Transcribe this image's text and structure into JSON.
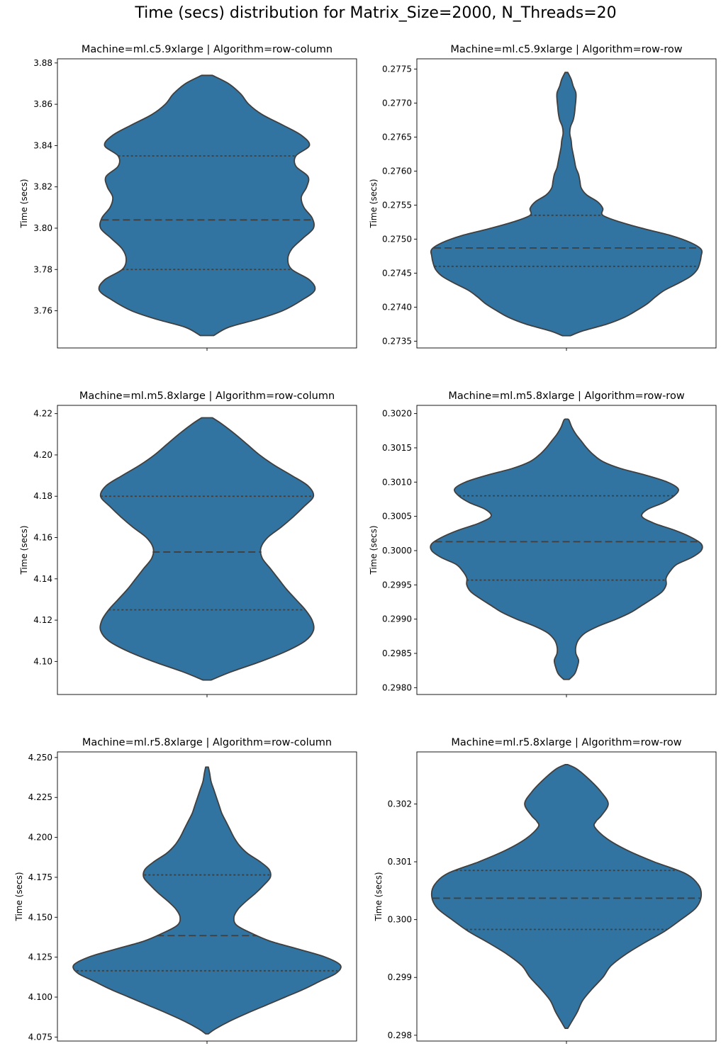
{
  "figure": {
    "title": "Time (secs) distribution for Matrix_Size=2000, N_Threads=20"
  },
  "colors": {
    "violin_fill": "#3274a1",
    "violin_edge": "#3f3f3f",
    "quartile_line": "#3f3f3f",
    "axes_edge": "#000000"
  },
  "chart_data": [
    {
      "type": "violin",
      "title": "Machine=ml.c5.9xlarge | Algorithm=row-column",
      "ylabel": "Time (secs)",
      "ylim": [
        3.742,
        3.882
      ],
      "ticks": [
        3.76,
        3.78,
        3.8,
        3.82,
        3.84,
        3.86,
        3.88
      ],
      "tick_labels": [
        "3.76",
        "3.78",
        "3.80",
        "3.82",
        "3.84",
        "3.86",
        "3.88"
      ],
      "quartiles": {
        "q1": 3.78,
        "median": 3.804,
        "q3": 3.835
      },
      "density": [
        [
          3.748,
          0.05
        ],
        [
          3.752,
          0.16
        ],
        [
          3.756,
          0.38
        ],
        [
          3.76,
          0.56
        ],
        [
          3.765,
          0.7
        ],
        [
          3.77,
          0.8
        ],
        [
          3.775,
          0.76
        ],
        [
          3.78,
          0.63
        ],
        [
          3.785,
          0.6
        ],
        [
          3.79,
          0.63
        ],
        [
          3.795,
          0.71
        ],
        [
          3.8,
          0.79
        ],
        [
          3.805,
          0.78
        ],
        [
          3.81,
          0.72
        ],
        [
          3.815,
          0.7
        ],
        [
          3.82,
          0.74
        ],
        [
          3.825,
          0.75
        ],
        [
          3.83,
          0.66
        ],
        [
          3.835,
          0.66
        ],
        [
          3.84,
          0.76
        ],
        [
          3.845,
          0.7
        ],
        [
          3.85,
          0.56
        ],
        [
          3.855,
          0.41
        ],
        [
          3.86,
          0.31
        ],
        [
          3.865,
          0.25
        ],
        [
          3.87,
          0.16
        ],
        [
          3.874,
          0.04
        ]
      ]
    },
    {
      "type": "violin",
      "title": "Machine=ml.c5.9xlarge | Algorithm=row-row",
      "ylabel": "Time (secs)",
      "ylim": [
        0.2734,
        0.27765
      ],
      "ticks": [
        0.2735,
        0.274,
        0.2745,
        0.275,
        0.2755,
        0.276,
        0.2765,
        0.277,
        0.2775
      ],
      "tick_labels": [
        "0.2735",
        "0.2740",
        "0.2745",
        "0.2750",
        "0.2755",
        "0.2760",
        "0.2765",
        "0.2770",
        "0.2775"
      ],
      "quartiles": {
        "q1": 0.2746,
        "median": 0.27487,
        "q3": 0.27535
      },
      "density": [
        [
          0.27358,
          0.03
        ],
        [
          0.27365,
          0.12
        ],
        [
          0.27375,
          0.3
        ],
        [
          0.27385,
          0.43
        ],
        [
          0.27395,
          0.52
        ],
        [
          0.27405,
          0.6
        ],
        [
          0.27415,
          0.66
        ],
        [
          0.27425,
          0.73
        ],
        [
          0.27435,
          0.83
        ],
        [
          0.27445,
          0.92
        ],
        [
          0.27455,
          0.97
        ],
        [
          0.27465,
          0.99
        ],
        [
          0.27475,
          1.0
        ],
        [
          0.27485,
          1.0
        ],
        [
          0.27495,
          0.92
        ],
        [
          0.27505,
          0.78
        ],
        [
          0.27515,
          0.58
        ],
        [
          0.27525,
          0.4
        ],
        [
          0.27535,
          0.27
        ],
        [
          0.27545,
          0.27
        ],
        [
          0.27555,
          0.23
        ],
        [
          0.27565,
          0.15
        ],
        [
          0.27575,
          0.11
        ],
        [
          0.27585,
          0.1
        ],
        [
          0.27595,
          0.09
        ],
        [
          0.27605,
          0.07
        ],
        [
          0.27615,
          0.06
        ],
        [
          0.27625,
          0.05
        ],
        [
          0.27635,
          0.04
        ],
        [
          0.27645,
          0.035
        ],
        [
          0.27655,
          0.025
        ],
        [
          0.27665,
          0.03
        ],
        [
          0.27675,
          0.05
        ],
        [
          0.27685,
          0.06
        ],
        [
          0.27695,
          0.065
        ],
        [
          0.27705,
          0.07
        ],
        [
          0.27715,
          0.07
        ],
        [
          0.27725,
          0.05
        ],
        [
          0.27735,
          0.035
        ],
        [
          0.27745,
          0.01
        ]
      ]
    },
    {
      "type": "violin",
      "title": "Machine=ml.m5.8xlarge | Algorithm=row-column",
      "ylabel": "Time (secs)",
      "ylim": [
        4.084,
        4.224
      ],
      "ticks": [
        4.1,
        4.12,
        4.14,
        4.16,
        4.18,
        4.2,
        4.22
      ],
      "tick_labels": [
        "4.10",
        "4.12",
        "4.14",
        "4.16",
        "4.18",
        "4.20",
        "4.22"
      ],
      "quartiles": {
        "q1": 4.125,
        "median": 4.153,
        "q3": 4.18
      },
      "density": [
        [
          4.091,
          0.03
        ],
        [
          4.095,
          0.18
        ],
        [
          4.1,
          0.4
        ],
        [
          4.105,
          0.59
        ],
        [
          4.11,
          0.73
        ],
        [
          4.115,
          0.79
        ],
        [
          4.12,
          0.78
        ],
        [
          4.125,
          0.73
        ],
        [
          4.13,
          0.66
        ],
        [
          4.135,
          0.59
        ],
        [
          4.14,
          0.53
        ],
        [
          4.145,
          0.47
        ],
        [
          4.15,
          0.41
        ],
        [
          4.155,
          0.4
        ],
        [
          4.16,
          0.45
        ],
        [
          4.165,
          0.55
        ],
        [
          4.17,
          0.64
        ],
        [
          4.175,
          0.72
        ],
        [
          4.18,
          0.79
        ],
        [
          4.185,
          0.75
        ],
        [
          4.19,
          0.63
        ],
        [
          4.195,
          0.5
        ],
        [
          4.2,
          0.39
        ],
        [
          4.205,
          0.3
        ],
        [
          4.21,
          0.21
        ],
        [
          4.215,
          0.11
        ],
        [
          4.218,
          0.04
        ]
      ]
    },
    {
      "type": "violin",
      "title": "Machine=ml.m5.8xlarge | Algorithm=row-row",
      "ylabel": "Time (secs)",
      "ylim": [
        0.2979,
        0.30212
      ],
      "ticks": [
        0.298,
        0.2985,
        0.299,
        0.2995,
        0.3,
        0.3005,
        0.301,
        0.3015,
        0.302
      ],
      "tick_labels": [
        "0.2980",
        "0.2985",
        "0.2990",
        "0.2995",
        "0.3000",
        "0.3005",
        "0.3010",
        "0.3015",
        "0.3020"
      ],
      "quartiles": {
        "q1": 0.29957,
        "median": 0.30013,
        "q3": 0.3008
      },
      "density": [
        [
          0.29812,
          0.02
        ],
        [
          0.2982,
          0.06
        ],
        [
          0.2983,
          0.08
        ],
        [
          0.2984,
          0.09
        ],
        [
          0.2985,
          0.07
        ],
        [
          0.2986,
          0.07
        ],
        [
          0.2987,
          0.09
        ],
        [
          0.2988,
          0.14
        ],
        [
          0.2989,
          0.24
        ],
        [
          0.299,
          0.37
        ],
        [
          0.2991,
          0.48
        ],
        [
          0.2992,
          0.56
        ],
        [
          0.2993,
          0.64
        ],
        [
          0.2994,
          0.71
        ],
        [
          0.2995,
          0.74
        ],
        [
          0.2996,
          0.74
        ],
        [
          0.2997,
          0.77
        ],
        [
          0.2998,
          0.82
        ],
        [
          0.2999,
          0.93
        ],
        [
          0.3,
          1.0
        ],
        [
          0.3001,
          1.0
        ],
        [
          0.3002,
          0.92
        ],
        [
          0.3003,
          0.8
        ],
        [
          0.3004,
          0.65
        ],
        [
          0.3005,
          0.56
        ],
        [
          0.3006,
          0.6
        ],
        [
          0.3007,
          0.72
        ],
        [
          0.3008,
          0.8
        ],
        [
          0.3009,
          0.83
        ],
        [
          0.301,
          0.75
        ],
        [
          0.3011,
          0.59
        ],
        [
          0.3012,
          0.4
        ],
        [
          0.3013,
          0.27
        ],
        [
          0.3014,
          0.2
        ],
        [
          0.3015,
          0.15
        ],
        [
          0.3016,
          0.11
        ],
        [
          0.3017,
          0.07
        ],
        [
          0.3018,
          0.04
        ],
        [
          0.3019,
          0.02
        ],
        [
          0.30192,
          0.01
        ]
      ]
    },
    {
      "type": "violin",
      "title": "Machine=ml.r5.8xlarge | Algorithm=row-column",
      "ylabel": "Time (secs)",
      "ylim": [
        4.0725,
        4.2535
      ],
      "ticks": [
        4.075,
        4.1,
        4.125,
        4.15,
        4.175,
        4.2,
        4.225,
        4.25
      ],
      "tick_labels": [
        "4.075",
        "4.100",
        "4.125",
        "4.150",
        "4.175",
        "4.200",
        "4.225",
        "4.250"
      ],
      "quartiles": {
        "q1": 4.1165,
        "median": 4.1385,
        "q3": 4.1765
      },
      "density": [
        [
          4.077,
          0.01
        ],
        [
          4.08,
          0.06
        ],
        [
          4.085,
          0.17
        ],
        [
          4.09,
          0.3
        ],
        [
          4.095,
          0.44
        ],
        [
          4.1,
          0.58
        ],
        [
          4.105,
          0.72
        ],
        [
          4.11,
          0.84
        ],
        [
          4.115,
          0.96
        ],
        [
          4.12,
          0.99
        ],
        [
          4.125,
          0.88
        ],
        [
          4.13,
          0.68
        ],
        [
          4.135,
          0.47
        ],
        [
          4.14,
          0.33
        ],
        [
          4.145,
          0.22
        ],
        [
          4.15,
          0.2
        ],
        [
          4.155,
          0.23
        ],
        [
          4.16,
          0.29
        ],
        [
          4.165,
          0.36
        ],
        [
          4.17,
          0.42
        ],
        [
          4.175,
          0.47
        ],
        [
          4.18,
          0.46
        ],
        [
          4.185,
          0.39
        ],
        [
          4.19,
          0.3
        ],
        [
          4.195,
          0.24
        ],
        [
          4.2,
          0.2
        ],
        [
          4.205,
          0.17
        ],
        [
          4.21,
          0.14
        ],
        [
          4.215,
          0.11
        ],
        [
          4.22,
          0.09
        ],
        [
          4.225,
          0.07
        ],
        [
          4.23,
          0.05
        ],
        [
          4.235,
          0.03
        ],
        [
          4.24,
          0.02
        ],
        [
          4.244,
          0.01
        ]
      ]
    },
    {
      "type": "violin",
      "title": "Machine=ml.r5.8xlarge | Algorithm=row-row",
      "ylabel": "Time (secs)",
      "ylim": [
        0.2979,
        0.3029
      ],
      "ticks": [
        0.298,
        0.299,
        0.3,
        0.301,
        0.302
      ],
      "tick_labels": [
        "0.298",
        "0.299",
        "0.300",
        "0.301",
        "0.302"
      ],
      "quartiles": {
        "q1": 0.29983,
        "median": 0.30037,
        "q3": 0.30085
      },
      "density": [
        [
          0.29812,
          0.01
        ],
        [
          0.2982,
          0.03
        ],
        [
          0.2984,
          0.08
        ],
        [
          0.2986,
          0.12
        ],
        [
          0.2988,
          0.19
        ],
        [
          0.299,
          0.27
        ],
        [
          0.2992,
          0.33
        ],
        [
          0.2994,
          0.44
        ],
        [
          0.2996,
          0.58
        ],
        [
          0.2998,
          0.73
        ],
        [
          0.3,
          0.85
        ],
        [
          0.3002,
          0.96
        ],
        [
          0.3004,
          1.0
        ],
        [
          0.3006,
          0.98
        ],
        [
          0.3008,
          0.88
        ],
        [
          0.301,
          0.65
        ],
        [
          0.3012,
          0.45
        ],
        [
          0.3014,
          0.3
        ],
        [
          0.3016,
          0.21
        ],
        [
          0.3017,
          0.22
        ],
        [
          0.3018,
          0.26
        ],
        [
          0.302,
          0.31
        ],
        [
          0.3022,
          0.26
        ],
        [
          0.3024,
          0.18
        ],
        [
          0.3026,
          0.08
        ],
        [
          0.30268,
          0.01
        ]
      ]
    }
  ]
}
